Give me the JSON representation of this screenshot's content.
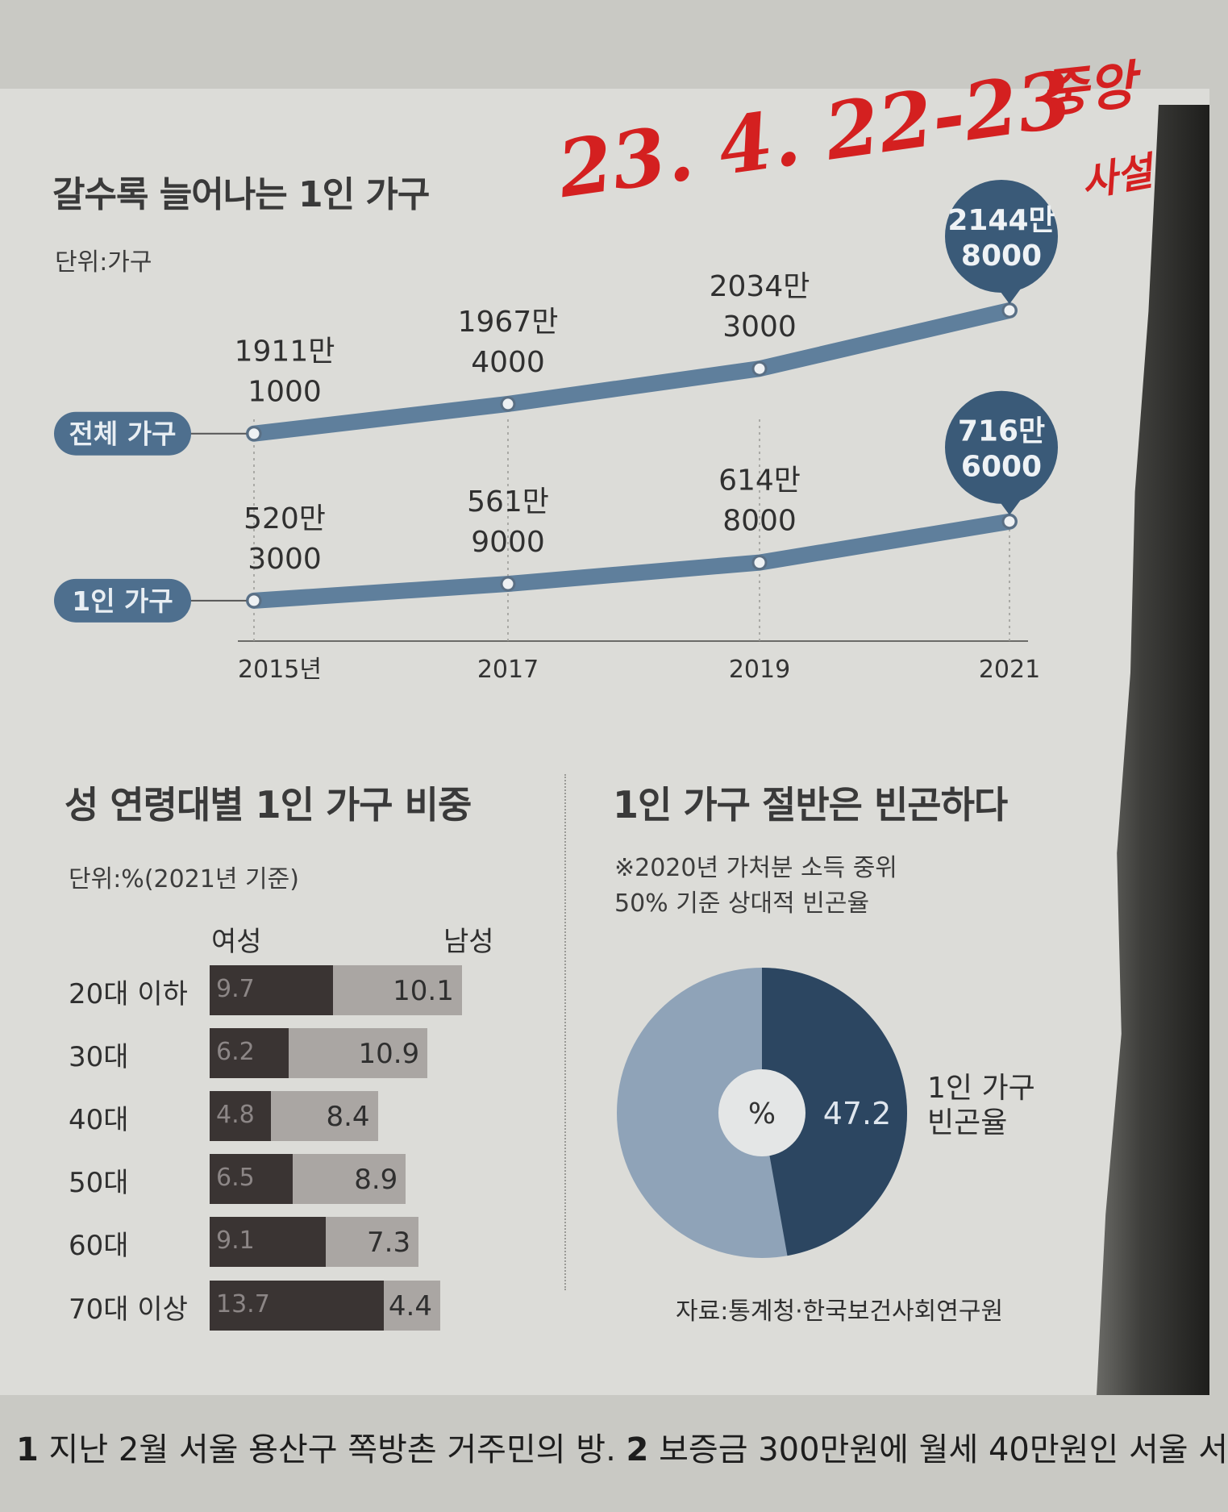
{
  "line_chart": {
    "title": "갈수록 늘어나는 1인 가구",
    "unit": "단위:가구",
    "chart_data": {
      "type": "line",
      "x": [
        "2015년",
        "2017",
        "2019",
        "2021"
      ],
      "series": [
        {
          "name": "전체 가구",
          "values": [
            19111000,
            19674000,
            20343000,
            21448000
          ],
          "labels": [
            [
              "1911만",
              "1000"
            ],
            [
              "1967만",
              "4000"
            ],
            [
              "2034만",
              "3000"
            ],
            [
              "2144만",
              "8000"
            ]
          ]
        },
        {
          "name": "1인 가구",
          "values": [
            5203000,
            5619000,
            6148000,
            7166000
          ],
          "labels": [
            [
              "520만",
              "3000"
            ],
            [
              "561만",
              "9000"
            ],
            [
              "614만",
              "8000"
            ],
            [
              "716만",
              "6000"
            ]
          ]
        }
      ],
      "colors": {
        "line": "#5f7f9c",
        "bubble": "#3a5a78",
        "pill": "#4e6f8e"
      }
    }
  },
  "bar_chart": {
    "title": "성 연령대별 1인 가구 비중",
    "unit": "단위:%(2021년 기준)",
    "legend": {
      "female": "여성",
      "male": "남성"
    },
    "chart_data": {
      "type": "bar",
      "categories": [
        "20대 이하",
        "30대",
        "40대",
        "50대",
        "60대",
        "70대 이상"
      ],
      "series": [
        {
          "name": "여성",
          "values": [
            9.7,
            6.2,
            4.8,
            6.5,
            9.1,
            13.7
          ],
          "labels": [
            "9.7",
            "6.2",
            "4.8",
            "6.5",
            "9.1",
            "13.7"
          ]
        },
        {
          "name": "남성",
          "values": [
            10.1,
            10.9,
            8.4,
            8.9,
            7.3,
            4.4
          ],
          "labels": [
            "10.1",
            "10.9",
            "8.4",
            "8.9",
            "7.3",
            "4.4"
          ]
        }
      ]
    }
  },
  "pie_chart": {
    "title": "1인 가구 절반은 빈곤하다",
    "note_line1": "※2020년 가처분 소득 중위",
    "note_line2": "50% 기준 상대적 빈곤율",
    "chart_data": {
      "type": "pie",
      "value": 47.2,
      "value_label": "47.2",
      "center_label": "%",
      "label_line1": "1인 가구",
      "label_line2": "빈곤율",
      "colors": {
        "highlight": "#2c4661",
        "rest": "#8fa3b8"
      }
    }
  },
  "source": "자료:통계청·한국보건사회연구원",
  "caption": {
    "num1": "1",
    "text1": " 지난 2월 서울 용산구 쪽방촌 거주민의 방. ",
    "num2": "2",
    "text2": " 보증금 300만원에 월세 40만원인 서울 서"
  },
  "handwriting": {
    "date": "23. 4. 22-23",
    "paper_name": "중앙",
    "paper_name_2": "사설"
  }
}
